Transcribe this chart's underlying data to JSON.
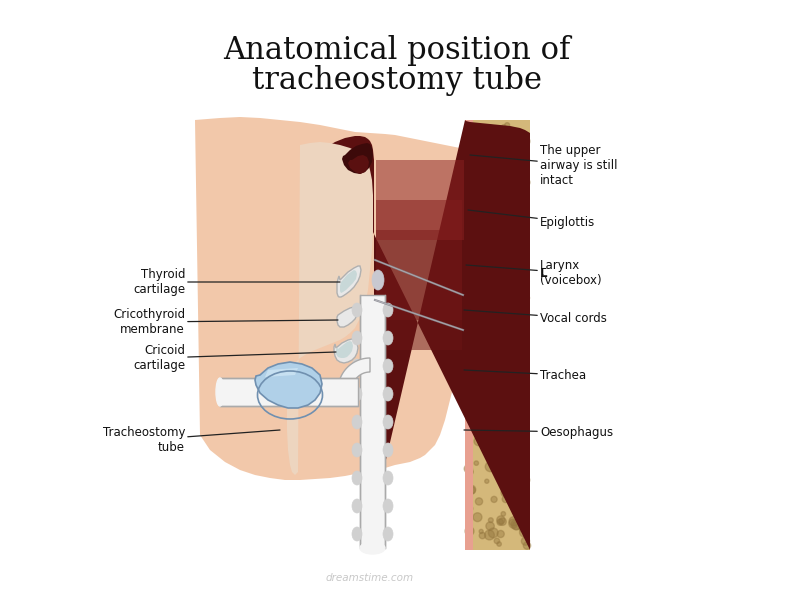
{
  "title_line1": "Anatomical position of",
  "title_line2": "tracheostomy tube",
  "title_fontsize": 22,
  "title_font": "DejaVu Serif",
  "background_color": "#ffffff",
  "watermark": "dreamstime.com",
  "skin_color": "#f2c8aa",
  "skin_inner": "#e8b898",
  "dark_red": "#5c1010",
  "medium_red": "#7a1a1a",
  "light_red": "#a03030",
  "bone_color": "#d4b87a",
  "bone_dark": "#b89858",
  "bone_spots": "#967840",
  "cartilage_color": "#e8e8e8",
  "cartilage_edge": "#b0b0b0",
  "tube_color": "#f4f4f4",
  "tube_edge": "#aaaaaa",
  "flange_color": "#b0d0e8",
  "flange_edge": "#7090b0",
  "pink_lining": "#e8a090",
  "annotation_fontsize": 8.5,
  "arrow_color": "#222222",
  "label_bold": [
    "Larynx\n(voicebox)"
  ]
}
